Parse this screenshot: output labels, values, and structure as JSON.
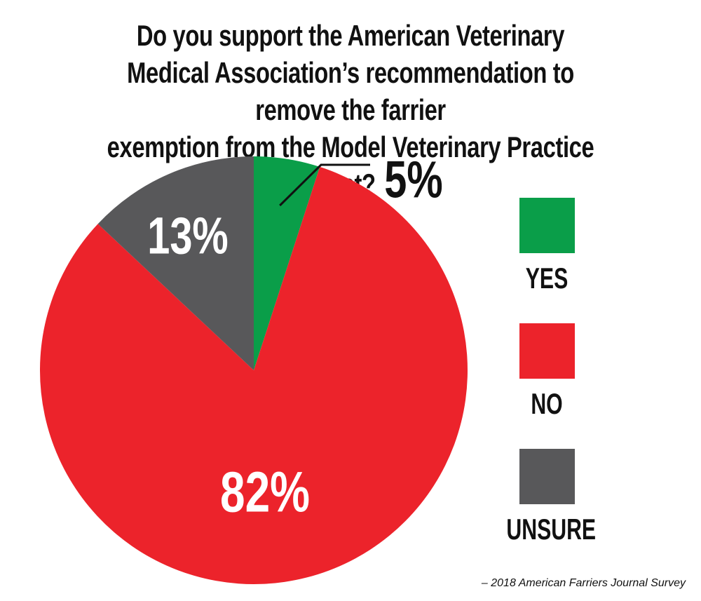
{
  "chart_data": {
    "type": "pie",
    "title": [
      "Do you support the American Veterinary",
      "Medical Association’s recommendation to remove the farrier",
      "exemption from the Model Veterinary Practice Act?"
    ],
    "slices": [
      {
        "label": "YES",
        "value": 5,
        "value_label": "5%",
        "color": "#0a9e49"
      },
      {
        "label": "NO",
        "value": 82,
        "value_label": "82%",
        "color": "#ec232b"
      },
      {
        "label": "UNSURE",
        "value": 13,
        "value_label": "13%",
        "color": "#58585a"
      }
    ],
    "legend_placement": "right",
    "start_angle": "12 o'clock, clockwise",
    "source": "– 2018 American Farriers Journal Survey"
  }
}
